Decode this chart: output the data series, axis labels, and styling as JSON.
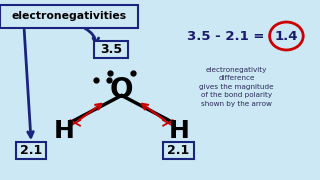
{
  "bg_color": "#cce8f4",
  "O_label": "O",
  "H_label": "H",
  "en_box_label": "electronegativities",
  "en_O_label": "3.5",
  "en_H_label": "2.1",
  "equation_text": "3.5 - 2.1 = ",
  "result_text": "1.4",
  "desc_text": "electronegativity\ndifference\ngives the magnitude\nof the bond polarity\nshown by the arrow",
  "dark_navy": "#1a1a6e",
  "dark_blue": "#1a237e",
  "arrow_red": "#cc0000",
  "box_blue": "#1a237e",
  "circle_red": "#cc0000",
  "Ox": 0.38,
  "Oy": 0.5,
  "Hlx": 0.2,
  "Hly": 0.27,
  "Hrx": 0.56,
  "Hry": 0.27
}
